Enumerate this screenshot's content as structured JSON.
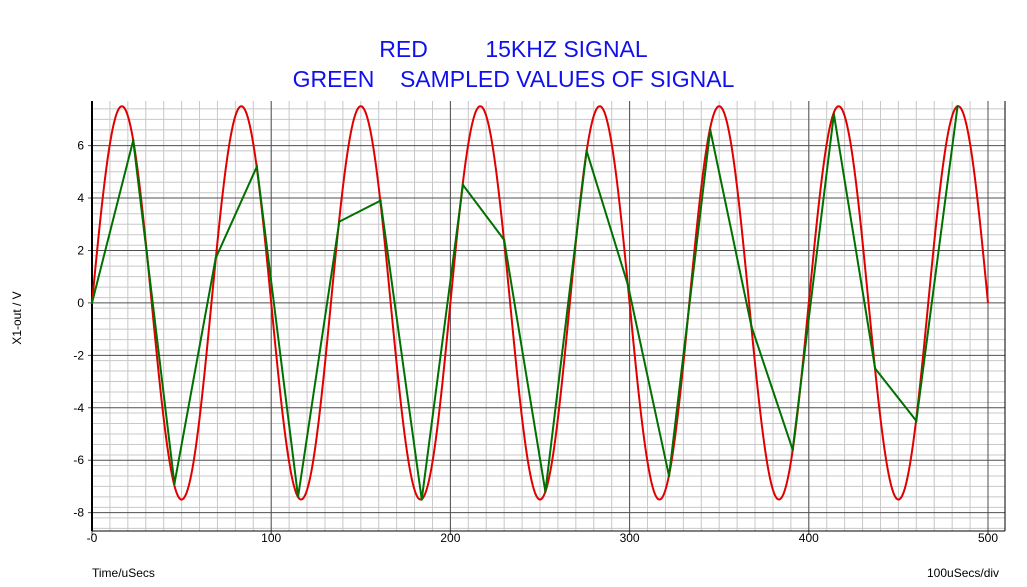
{
  "chart_data": {
    "type": "line",
    "title_lines": [
      "RED         15KHZ SIGNAL",
      "GREEN    SAMPLED VALUES OF SIGNAL"
    ],
    "xlabel": "Time/uSecs",
    "ylabel": "X1-out / V",
    "x_scale_note": "100uSecs/div",
    "xlim": [
      0,
      500
    ],
    "ylim": [
      -8.7,
      7.7
    ],
    "x_ticks": [
      0,
      100,
      200,
      300,
      400,
      500
    ],
    "x_tick_labels": [
      "-0",
      "100",
      "200",
      "300",
      "400",
      "500"
    ],
    "y_ticks": [
      -8,
      -6,
      -4,
      -2,
      0,
      2,
      4,
      6
    ],
    "y_tick_labels": [
      "-8",
      "-6",
      "-4",
      "-2",
      "0",
      "2",
      "4",
      "6"
    ],
    "grid": true,
    "colors": {
      "signal": "#e00000",
      "samples": "#007000",
      "title": "#1010ee"
    },
    "series": [
      {
        "legend": "RED 15KHZ SIGNAL",
        "kind": "sine",
        "amplitude": 7.5,
        "frequency_khz": 15,
        "x_start": 0,
        "x_end": 500
      },
      {
        "legend": "GREEN SAMPLED VALUES OF SIGNAL",
        "kind": "sampled",
        "x": [
          0,
          23,
          46,
          69,
          92,
          115,
          138,
          161,
          184,
          207,
          230,
          253,
          276,
          299,
          322,
          345,
          368,
          391,
          414,
          437,
          460,
          483
        ],
        "y": [
          0,
          6.2,
          -6.9,
          1.7,
          5.2,
          -7.4,
          3.1,
          3.9,
          -7.5,
          4.5,
          2.4,
          -7.2,
          5.8,
          0.7,
          -6.6,
          6.6,
          -0.9,
          -5.6,
          7.2,
          -2.5,
          -4.5,
          7.5
        ]
      }
    ]
  }
}
